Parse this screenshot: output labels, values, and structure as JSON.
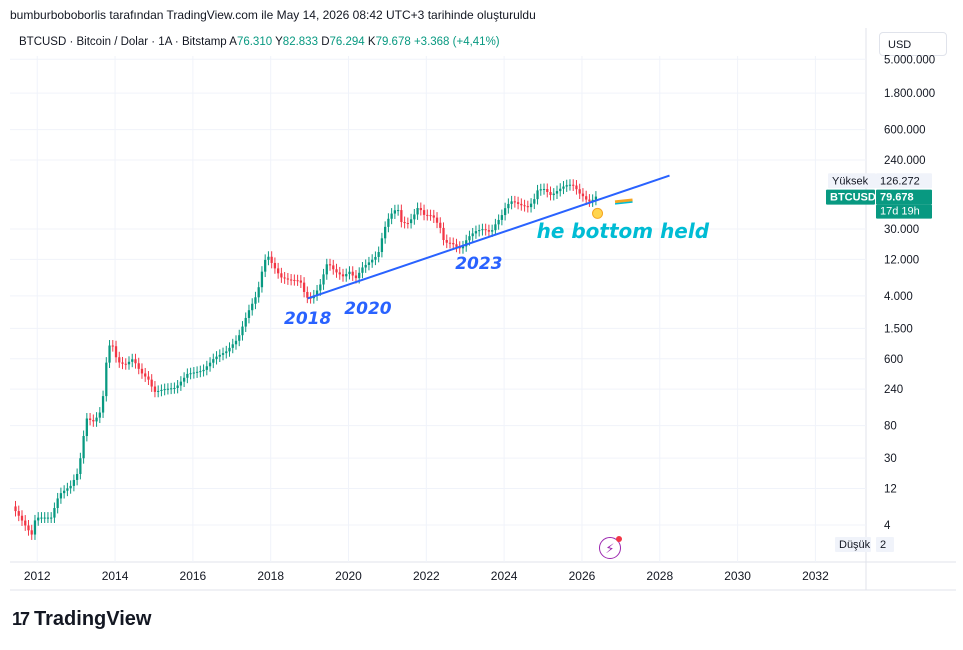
{
  "caption": "bumburboboborlis tarafından TradingView.com ile May 14, 2026 08:42 UTC+3 tarihinde oluşturuldu",
  "legend": {
    "symbol": "BTCUSD · Bitcoin / Dolar · 1A · Bitstamp",
    "a_label": "A",
    "a_value": "76.310",
    "y_label": "Y",
    "y_value": "82.833",
    "d_label": "D",
    "d_value": "76.294",
    "k_label": "K",
    "k_value": "79.678",
    "change": "+3.368 (+4,41%)"
  },
  "currency": "USD",
  "brand": "TradingView",
  "colors": {
    "up": "#089981",
    "down": "#f23645",
    "trendline": "#2962ff",
    "annotation_text": "#2962ff",
    "callout_text": "#00bcd4",
    "price_tag": "#089981"
  },
  "price_panel": {
    "high_label": "Yüksek",
    "high_value": "126.272",
    "low_label": "Düşük",
    "low_value": "2",
    "symbol_tag": "BTCUSD",
    "price_tag": "79.678",
    "countdown_tag": "17d 19h"
  },
  "chart_data": {
    "type": "candlestick",
    "scale": "log",
    "interval": "1M",
    "grid": true,
    "x_axis": {
      "min": 2011.3,
      "max": 2033.3,
      "ticks": [
        "2012",
        "2014",
        "2016",
        "2018",
        "2020",
        "2022",
        "2024",
        "2026",
        "2028",
        "2030",
        "2032"
      ]
    },
    "y_axis": {
      "ticks": [
        {
          "v": 5000000,
          "label": "5.000.000"
        },
        {
          "v": 1800000,
          "label": "1.800.000"
        },
        {
          "v": 600000,
          "label": "600.000"
        },
        {
          "v": 240000,
          "label": "240.000"
        },
        {
          "v": 30000,
          "label": "30.000"
        },
        {
          "v": 12000,
          "label": "12.000"
        },
        {
          "v": 4000,
          "label": "4.000"
        },
        {
          "v": 1500,
          "label": "1.500"
        },
        {
          "v": 600,
          "label": "600"
        },
        {
          "v": 240,
          "label": "240"
        },
        {
          "v": 80,
          "label": "80"
        },
        {
          "v": 30,
          "label": "30"
        },
        {
          "v": 12,
          "label": "12"
        },
        {
          "v": 4,
          "label": "4"
        }
      ]
    },
    "price_path": [
      [
        2011.4,
        7
      ],
      [
        2011.6,
        5
      ],
      [
        2011.8,
        3.5
      ],
      [
        2011.9,
        3
      ],
      [
        2012.0,
        5
      ],
      [
        2012.4,
        5
      ],
      [
        2012.6,
        10
      ],
      [
        2012.9,
        13
      ],
      [
        2013.1,
        20
      ],
      [
        2013.3,
        100
      ],
      [
        2013.5,
        90
      ],
      [
        2013.7,
        130
      ],
      [
        2013.85,
        800
      ],
      [
        2013.95,
        1000
      ],
      [
        2014.1,
        550
      ],
      [
        2014.3,
        500
      ],
      [
        2014.5,
        600
      ],
      [
        2014.7,
        400
      ],
      [
        2014.9,
        320
      ],
      [
        2015.05,
        220
      ],
      [
        2015.3,
        240
      ],
      [
        2015.6,
        250
      ],
      [
        2015.9,
        380
      ],
      [
        2016.3,
        420
      ],
      [
        2016.6,
        620
      ],
      [
        2016.9,
        750
      ],
      [
        2017.2,
        1100
      ],
      [
        2017.45,
        2400
      ],
      [
        2017.7,
        4300
      ],
      [
        2017.85,
        10000
      ],
      [
        2017.95,
        14000
      ],
      [
        2018.1,
        10000
      ],
      [
        2018.3,
        7000
      ],
      [
        2018.5,
        6500
      ],
      [
        2018.8,
        6300
      ],
      [
        2018.95,
        3800
      ],
      [
        2019.1,
        3700
      ],
      [
        2019.3,
        5300
      ],
      [
        2019.5,
        11000
      ],
      [
        2019.7,
        8300
      ],
      [
        2019.9,
        7200
      ],
      [
        2020.1,
        8500
      ],
      [
        2020.2,
        6400
      ],
      [
        2020.4,
        9400
      ],
      [
        2020.6,
        11300
      ],
      [
        2020.8,
        13800
      ],
      [
        2020.95,
        29000
      ],
      [
        2021.1,
        45000
      ],
      [
        2021.3,
        57000
      ],
      [
        2021.4,
        37000
      ],
      [
        2021.55,
        35000
      ],
      [
        2021.7,
        43000
      ],
      [
        2021.85,
        61000
      ],
      [
        2021.95,
        46000
      ],
      [
        2022.2,
        45000
      ],
      [
        2022.4,
        31000
      ],
      [
        2022.5,
        20000
      ],
      [
        2022.7,
        19500
      ],
      [
        2022.85,
        17000
      ],
      [
        2022.95,
        16500
      ],
      [
        2023.1,
        23000
      ],
      [
        2023.3,
        28000
      ],
      [
        2023.5,
        30000
      ],
      [
        2023.7,
        27000
      ],
      [
        2023.85,
        37000
      ],
      [
        2023.95,
        42000
      ],
      [
        2024.1,
        61000
      ],
      [
        2024.25,
        70000
      ],
      [
        2024.45,
        62000
      ],
      [
        2024.65,
        58000
      ],
      [
        2024.8,
        70000
      ],
      [
        2024.9,
        96000
      ],
      [
        2025.05,
        102000
      ],
      [
        2025.25,
        82000
      ],
      [
        2025.4,
        94000
      ],
      [
        2025.55,
        107000
      ],
      [
        2025.7,
        115000
      ],
      [
        2025.85,
        110000
      ],
      [
        2025.95,
        90000
      ],
      [
        2026.1,
        78000
      ],
      [
        2026.2,
        68000
      ],
      [
        2026.3,
        70000
      ],
      [
        2026.37,
        79678
      ]
    ],
    "trendline": {
      "from": [
        2018.95,
        3700
      ],
      "to": [
        2028.25,
        150000
      ]
    },
    "projection_arrow": {
      "from": [
        2026.85,
        68000
      ],
      "to": [
        2027.3,
        72000
      ]
    },
    "annotations": [
      {
        "text": "2018",
        "x": 2018.95,
        "y": 1700
      },
      {
        "text": "2020",
        "x": 2020.5,
        "y": 2300
      },
      {
        "text": "2023",
        "x": 2023.35,
        "y": 9000
      },
      {
        "text": "he bottom held",
        "x": 2027.05,
        "y": 23000
      }
    ]
  }
}
